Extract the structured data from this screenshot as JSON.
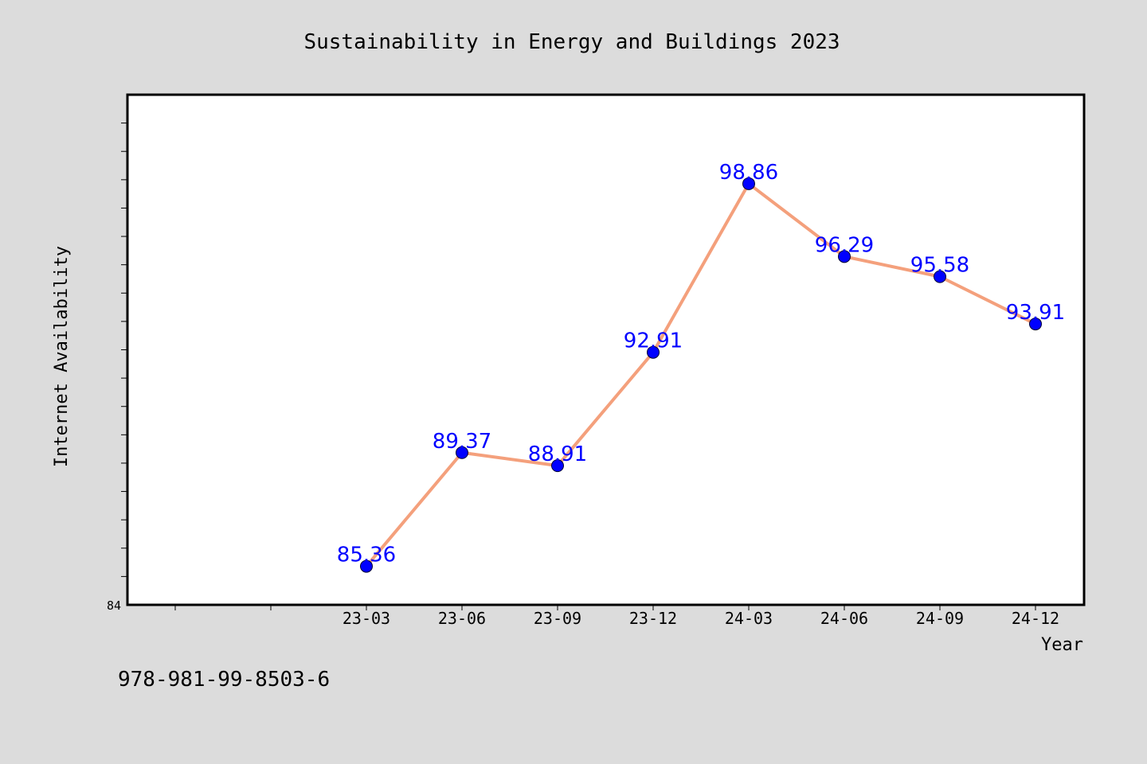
{
  "chart_data": {
    "type": "line",
    "title": "Sustainability in Energy and Buildings 2023",
    "xlabel": "Year",
    "ylabel": "Internet Availability",
    "categories": [
      "23-03",
      "23-06",
      "23-09",
      "23-12",
      "24-03",
      "24-06",
      "24-09",
      "24-12"
    ],
    "series": [
      {
        "values": [
          85.36,
          89.37,
          88.91,
          92.91,
          98.86,
          96.29,
          95.58,
          93.91
        ],
        "data_labels": [
          "85.36",
          "89.37",
          "88.91",
          "92.91",
          "98.86",
          "96.29",
          "95.58",
          "93.91"
        ]
      }
    ],
    "ylim": [
      84,
      102
    ],
    "y_tick_labels": [
      "84"
    ],
    "grid": false,
    "legend": "none"
  },
  "footer": {
    "isbn": "978-981-99-8503-6"
  },
  "colors": {
    "background": "#dcdcdc",
    "plot_background": "#ffffff",
    "line": "#f4a07c",
    "marker": "#0000ff",
    "data_label": "#0000ff"
  }
}
